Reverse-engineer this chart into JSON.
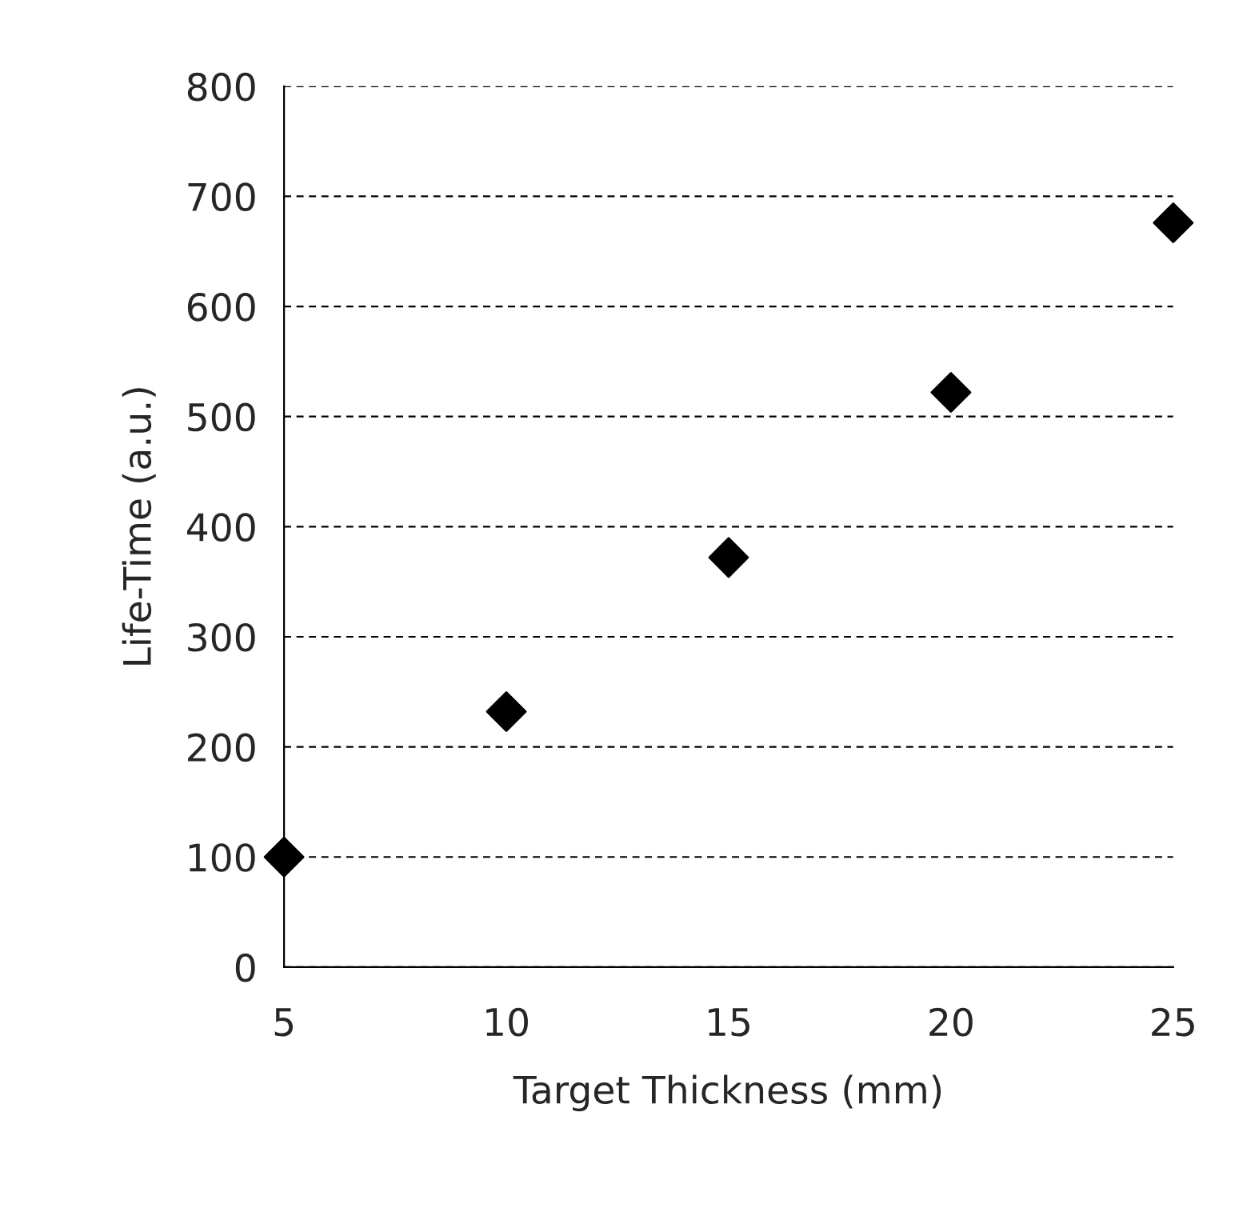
{
  "chart_data": {
    "type": "scatter",
    "xlabel": "Target Thickness (mm)",
    "ylabel": "Life-Time (a.u.)",
    "x": [
      5,
      10,
      15,
      20,
      25
    ],
    "series": [
      {
        "color": "#000000",
        "values": [
          100,
          232,
          372,
          522,
          676
        ]
      }
    ],
    "marker": "diamond",
    "xlim": [
      5,
      25
    ],
    "xticks": [
      5,
      10,
      15,
      20,
      25
    ],
    "ylim": [
      0,
      800
    ],
    "yticks": [
      0,
      100,
      200,
      300,
      400,
      500,
      600,
      700,
      800
    ],
    "grid": "y",
    "legend": false
  }
}
